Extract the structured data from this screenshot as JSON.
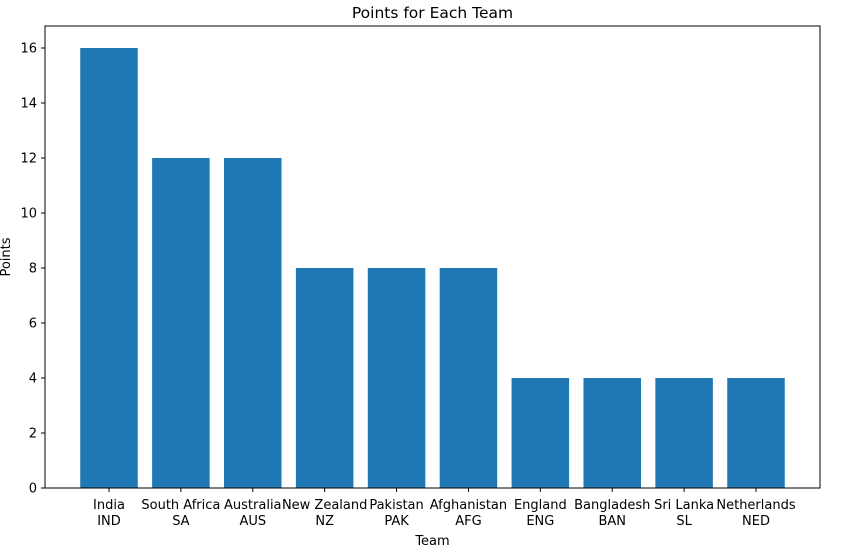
{
  "chart_data": {
    "type": "bar",
    "title": "Points for Each Team",
    "xlabel": "Team",
    "ylabel": "Points",
    "ylim": [
      0,
      16.8
    ],
    "yticks": [
      0,
      2,
      4,
      6,
      8,
      10,
      12,
      14,
      16
    ],
    "grid": false,
    "bar_color": "#1f77b4",
    "categories": [
      {
        "name": "India",
        "code": "IND"
      },
      {
        "name": "South Africa",
        "code": "SA"
      },
      {
        "name": "Australia",
        "code": "AUS"
      },
      {
        "name": "New Zealand",
        "code": "NZ"
      },
      {
        "name": "Pakistan",
        "code": "PAK"
      },
      {
        "name": "Afghanistan",
        "code": "AFG"
      },
      {
        "name": "England",
        "code": "ENG"
      },
      {
        "name": "Bangladesh",
        "code": "BAN"
      },
      {
        "name": "Sri Lanka",
        "code": "SL"
      },
      {
        "name": "Netherlands",
        "code": "NED"
      }
    ],
    "values": [
      16,
      12,
      12,
      8,
      8,
      8,
      4,
      4,
      4,
      4
    ]
  }
}
